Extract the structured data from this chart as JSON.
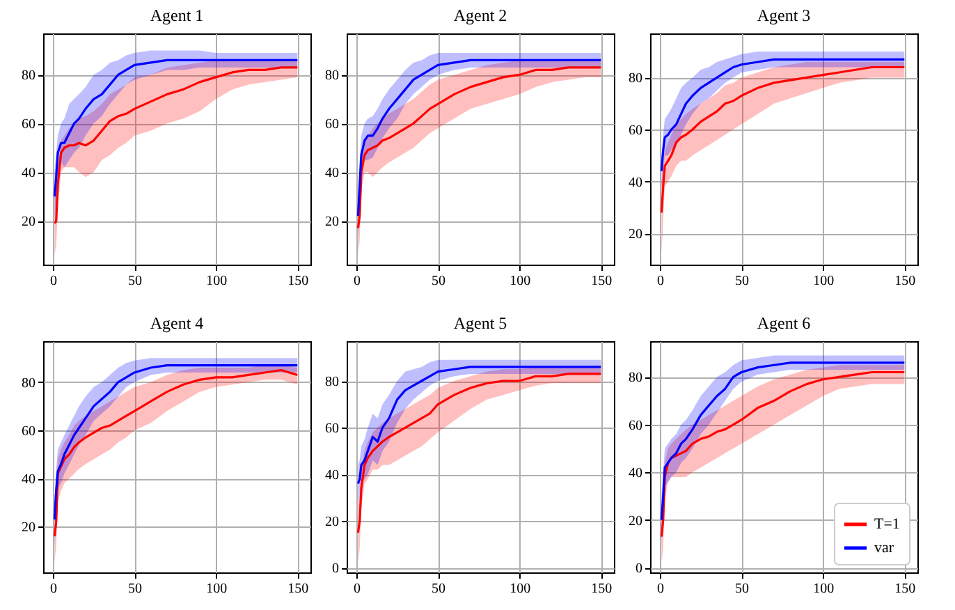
{
  "chart_data": [
    {
      "type": "line",
      "title": "Agent 1",
      "x": [
        1,
        2,
        3,
        5,
        7,
        10,
        13,
        16,
        20,
        25,
        30,
        35,
        40,
        45,
        50,
        60,
        70,
        80,
        90,
        100,
        110,
        120,
        130,
        140,
        150
      ],
      "xlim": [
        -6,
        158
      ],
      "xticks": [
        0,
        50,
        100,
        150
      ],
      "ylim": [
        2,
        97
      ],
      "yticks": [
        20,
        40,
        60,
        80
      ],
      "grid": true,
      "series": [
        {
          "color": "#ff0000",
          "values": [
            19,
            20,
            35,
            48,
            50,
            51,
            51,
            52,
            51,
            53,
            57,
            61,
            63,
            64,
            66,
            69,
            72,
            74,
            77,
            79,
            81,
            82,
            82,
            83,
            83
          ],
          "lower": [
            6,
            10,
            25,
            40,
            42,
            42,
            42,
            40,
            38,
            40,
            45,
            47,
            50,
            52,
            55,
            57,
            60,
            62,
            65,
            70,
            74,
            76,
            77,
            78,
            79
          ],
          "upper": [
            30,
            32,
            42,
            53,
            55,
            58,
            60,
            62,
            63,
            65,
            68,
            72,
            74,
            76,
            79,
            80,
            83,
            84,
            85,
            86,
            86,
            86,
            86,
            86,
            86
          ]
        },
        {
          "color": "#0000ff",
          "values": [
            30,
            38,
            48,
            52,
            52,
            56,
            60,
            62,
            66,
            70,
            72,
            76,
            80,
            82,
            84,
            85,
            86,
            86,
            86,
            86,
            86,
            86,
            86,
            86,
            86
          ],
          "lower": [
            20,
            28,
            40,
            44,
            42,
            45,
            48,
            50,
            55,
            60,
            63,
            68,
            72,
            76,
            78,
            80,
            82,
            82,
            83,
            83,
            83,
            83,
            83,
            83,
            83
          ],
          "upper": [
            40,
            48,
            55,
            60,
            62,
            68,
            70,
            72,
            75,
            80,
            82,
            85,
            86,
            88,
            89,
            90,
            90,
            90,
            90,
            89,
            89,
            89,
            89,
            89,
            89
          ]
        }
      ]
    },
    {
      "type": "line",
      "title": "Agent 2",
      "x": [
        1,
        2,
        3,
        5,
        7,
        10,
        13,
        16,
        20,
        25,
        30,
        35,
        40,
        45,
        50,
        60,
        70,
        80,
        90,
        100,
        110,
        120,
        130,
        140,
        150
      ],
      "xlim": [
        -6,
        158
      ],
      "xticks": [
        0,
        50,
        100,
        150
      ],
      "ylim": [
        2,
        97
      ],
      "yticks": [
        20,
        40,
        60,
        80
      ],
      "grid": true,
      "series": [
        {
          "color": "#ff0000",
          "values": [
            17,
            22,
            40,
            47,
            49,
            50,
            51,
            53,
            54,
            56,
            58,
            60,
            63,
            66,
            68,
            72,
            75,
            77,
            79,
            80,
            82,
            82,
            83,
            83,
            83
          ],
          "lower": [
            6,
            12,
            32,
            40,
            40,
            38,
            40,
            42,
            44,
            46,
            48,
            50,
            53,
            56,
            58,
            62,
            66,
            68,
            70,
            72,
            75,
            77,
            78,
            79,
            79
          ],
          "upper": [
            25,
            30,
            45,
            52,
            55,
            58,
            60,
            62,
            64,
            66,
            68,
            70,
            73,
            76,
            78,
            80,
            82,
            84,
            85,
            86,
            86,
            86,
            86,
            86,
            86
          ]
        },
        {
          "color": "#0000ff",
          "values": [
            22,
            35,
            47,
            53,
            55,
            55,
            58,
            62,
            66,
            70,
            74,
            78,
            80,
            82,
            84,
            85,
            86,
            86,
            86,
            86,
            86,
            86,
            86,
            86,
            86
          ],
          "lower": [
            12,
            25,
            40,
            45,
            45,
            46,
            50,
            54,
            58,
            62,
            68,
            72,
            75,
            78,
            80,
            82,
            83,
            83,
            83,
            83,
            83,
            83,
            83,
            83,
            83
          ],
          "upper": [
            30,
            45,
            55,
            60,
            62,
            63,
            66,
            70,
            74,
            78,
            82,
            85,
            86,
            88,
            89,
            89,
            89,
            89,
            89,
            89,
            89,
            89,
            89,
            89,
            89
          ]
        }
      ]
    },
    {
      "type": "line",
      "title": "Agent 3",
      "x": [
        1,
        2,
        3,
        5,
        7,
        10,
        13,
        16,
        20,
        25,
        30,
        35,
        40,
        45,
        50,
        60,
        70,
        80,
        90,
        100,
        110,
        120,
        130,
        140,
        150
      ],
      "xlim": [
        -6,
        158
      ],
      "xticks": [
        0,
        50,
        100,
        150
      ],
      "ylim": [
        8,
        97
      ],
      "yticks": [
        20,
        40,
        60,
        80
      ],
      "grid": true,
      "series": [
        {
          "color": "#ff0000",
          "values": [
            28,
            38,
            46,
            48,
            50,
            55,
            57,
            58,
            60,
            63,
            65,
            67,
            70,
            71,
            73,
            76,
            78,
            79,
            80,
            81,
            82,
            83,
            84,
            84,
            84
          ],
          "lower": [
            12,
            25,
            38,
            40,
            42,
            46,
            48,
            48,
            50,
            52,
            54,
            56,
            58,
            60,
            62,
            66,
            70,
            72,
            74,
            76,
            78,
            79,
            80,
            80,
            80
          ],
          "upper": [
            40,
            45,
            52,
            55,
            58,
            62,
            64,
            66,
            68,
            70,
            72,
            74,
            77,
            78,
            80,
            82,
            84,
            85,
            86,
            86,
            86,
            86,
            86,
            86,
            86
          ]
        },
        {
          "color": "#0000ff",
          "values": [
            44,
            52,
            57,
            58,
            60,
            62,
            66,
            70,
            73,
            76,
            78,
            80,
            82,
            84,
            85,
            86,
            87,
            87,
            87,
            87,
            87,
            87,
            87,
            87,
            87
          ],
          "lower": [
            36,
            44,
            50,
            50,
            52,
            54,
            58,
            62,
            66,
            70,
            72,
            75,
            78,
            80,
            82,
            83,
            84,
            84,
            84,
            84,
            84,
            84,
            84,
            84,
            84
          ],
          "upper": [
            50,
            58,
            64,
            66,
            68,
            72,
            76,
            78,
            80,
            83,
            84,
            86,
            87,
            88,
            89,
            90,
            90,
            90,
            90,
            90,
            90,
            90,
            90,
            90,
            90
          ]
        }
      ]
    },
    {
      "type": "line",
      "title": "Agent 4",
      "x": [
        1,
        2,
        3,
        5,
        7,
        10,
        13,
        16,
        20,
        25,
        30,
        35,
        40,
        45,
        50,
        60,
        70,
        80,
        90,
        100,
        110,
        120,
        130,
        140,
        150
      ],
      "xlim": [
        -6,
        158
      ],
      "xticks": [
        0,
        50,
        100,
        150
      ],
      "ylim": [
        1,
        97
      ],
      "yticks": [
        20,
        40,
        60,
        80
      ],
      "grid": true,
      "series": [
        {
          "color": "#ff0000",
          "values": [
            16,
            22,
            42,
            45,
            48,
            50,
            53,
            55,
            57,
            59,
            61,
            62,
            64,
            66,
            68,
            72,
            76,
            79,
            81,
            82,
            82,
            83,
            84,
            85,
            83
          ],
          "lower": [
            5,
            12,
            30,
            35,
            38,
            40,
            42,
            44,
            46,
            48,
            50,
            52,
            55,
            57,
            60,
            63,
            68,
            72,
            76,
            78,
            79,
            80,
            81,
            81,
            79
          ],
          "upper": [
            28,
            32,
            48,
            52,
            55,
            58,
            62,
            64,
            66,
            68,
            70,
            72,
            74,
            76,
            78,
            80,
            83,
            85,
            86,
            86,
            86,
            86,
            87,
            87,
            86
          ]
        },
        {
          "color": "#0000ff",
          "values": [
            23,
            35,
            43,
            46,
            50,
            54,
            58,
            61,
            65,
            70,
            73,
            76,
            80,
            82,
            84,
            86,
            87,
            87,
            87,
            87,
            87,
            87,
            87,
            87,
            87
          ],
          "lower": [
            12,
            26,
            36,
            38,
            42,
            46,
            50,
            54,
            58,
            64,
            67,
            70,
            74,
            78,
            80,
            83,
            84,
            84,
            84,
            84,
            84,
            84,
            84,
            84,
            84
          ],
          "upper": [
            32,
            44,
            52,
            55,
            58,
            62,
            66,
            70,
            74,
            78,
            80,
            83,
            86,
            88,
            89,
            90,
            90,
            90,
            90,
            90,
            90,
            90,
            90,
            90,
            90
          ]
        }
      ]
    },
    {
      "type": "line",
      "title": "Agent 5",
      "x": [
        1,
        2,
        3,
        5,
        7,
        10,
        13,
        16,
        20,
        25,
        30,
        35,
        40,
        45,
        50,
        60,
        70,
        80,
        90,
        100,
        110,
        120,
        130,
        140,
        150
      ],
      "xlim": [
        -6,
        158
      ],
      "xticks": [
        0,
        50,
        100,
        150
      ],
      "ylim": [
        -2,
        97
      ],
      "yticks": [
        0,
        20,
        40,
        60,
        80
      ],
      "grid": true,
      "series": [
        {
          "color": "#ff0000",
          "values": [
            15,
            20,
            34,
            44,
            47,
            50,
            52,
            54,
            56,
            58,
            60,
            62,
            64,
            66,
            70,
            74,
            77,
            79,
            80,
            80,
            82,
            82,
            83,
            83,
            83
          ],
          "lower": [
            2,
            8,
            25,
            36,
            38,
            42,
            42,
            44,
            44,
            46,
            48,
            50,
            52,
            55,
            58,
            63,
            68,
            72,
            74,
            76,
            78,
            79,
            79,
            79,
            79
          ],
          "upper": [
            28,
            30,
            42,
            50,
            54,
            58,
            60,
            62,
            64,
            66,
            68,
            70,
            72,
            74,
            77,
            80,
            82,
            84,
            85,
            85,
            86,
            86,
            86,
            86,
            86
          ]
        },
        {
          "color": "#0000ff",
          "values": [
            36,
            38,
            44,
            46,
            50,
            56,
            54,
            60,
            64,
            72,
            76,
            78,
            80,
            82,
            84,
            85,
            86,
            86,
            86,
            86,
            86,
            86,
            86,
            86,
            86
          ],
          "lower": [
            28,
            30,
            36,
            38,
            40,
            46,
            44,
            50,
            54,
            62,
            68,
            72,
            75,
            78,
            80,
            82,
            83,
            83,
            83,
            83,
            83,
            83,
            83,
            83,
            83
          ],
          "upper": [
            44,
            46,
            52,
            55,
            60,
            66,
            64,
            70,
            74,
            80,
            84,
            85,
            86,
            88,
            89,
            89,
            89,
            89,
            89,
            89,
            89,
            89,
            89,
            89,
            89
          ]
        }
      ]
    },
    {
      "type": "line",
      "title": "Agent 6",
      "x": [
        1,
        2,
        3,
        5,
        7,
        10,
        13,
        16,
        20,
        25,
        30,
        35,
        40,
        45,
        50,
        60,
        70,
        80,
        90,
        100,
        110,
        120,
        130,
        140,
        150
      ],
      "xlim": [
        -6,
        158
      ],
      "xticks": [
        0,
        50,
        100,
        150
      ],
      "ylim": [
        -2,
        95
      ],
      "yticks": [
        0,
        20,
        40,
        60,
        80
      ],
      "grid": true,
      "legend": "bottom right",
      "series": [
        {
          "name": "T=1",
          "color": "#ff0000",
          "values": [
            13,
            20,
            38,
            44,
            46,
            47,
            48,
            49,
            52,
            54,
            55,
            57,
            58,
            60,
            62,
            67,
            70,
            74,
            77,
            79,
            80,
            81,
            82,
            82,
            82
          ],
          "lower": [
            2,
            8,
            28,
            36,
            38,
            38,
            38,
            38,
            40,
            42,
            44,
            46,
            48,
            50,
            52,
            56,
            60,
            64,
            68,
            72,
            75,
            76,
            77,
            77,
            77
          ],
          "upper": [
            24,
            30,
            44,
            50,
            52,
            54,
            56,
            58,
            60,
            62,
            64,
            66,
            68,
            70,
            72,
            76,
            79,
            81,
            83,
            84,
            85,
            85,
            85,
            85,
            85
          ]
        },
        {
          "name": "var",
          "color": "#0000ff",
          "values": [
            20,
            30,
            42,
            44,
            46,
            48,
            52,
            54,
            58,
            64,
            68,
            72,
            75,
            80,
            82,
            84,
            85,
            86,
            86,
            86,
            86,
            86,
            86,
            86,
            86
          ],
          "lower": [
            10,
            22,
            34,
            36,
            38,
            40,
            44,
            46,
            50,
            56,
            60,
            65,
            70,
            75,
            78,
            81,
            82,
            83,
            83,
            83,
            83,
            83,
            83,
            83,
            83
          ],
          "upper": [
            30,
            40,
            50,
            52,
            54,
            56,
            60,
            62,
            66,
            72,
            76,
            80,
            82,
            85,
            87,
            88,
            89,
            89,
            89,
            89,
            89,
            89,
            89,
            89,
            89
          ]
        }
      ]
    }
  ]
}
